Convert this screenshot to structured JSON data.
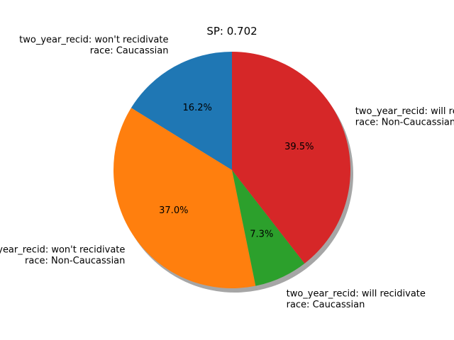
{
  "chart_data": {
    "type": "pie",
    "title": "SP: 0.702",
    "start_angle_deg": 90,
    "counterclockwise": true,
    "shadow": true,
    "slices": [
      {
        "label_lines": [
          "two_year_recid: won't recidivate",
          "race: Caucassian"
        ],
        "value": 16.2,
        "display": "16.2%",
        "color": "#1f77b4"
      },
      {
        "label_lines": [
          "two_year_recid: won't recidivate",
          "race: Non-Caucassian"
        ],
        "value": 37.0,
        "display": "37.0%",
        "color": "#ff7f0e"
      },
      {
        "label_lines": [
          "two_year_recid: will recidivate",
          "race: Caucassian"
        ],
        "value": 7.3,
        "display": "7.3%",
        "color": "#2ca02c"
      },
      {
        "label_lines": [
          "two_year_recid: will recidivate",
          "race: Non-Caucassian"
        ],
        "value": 39.5,
        "display": "39.5%",
        "color": "#d62728"
      }
    ]
  }
}
